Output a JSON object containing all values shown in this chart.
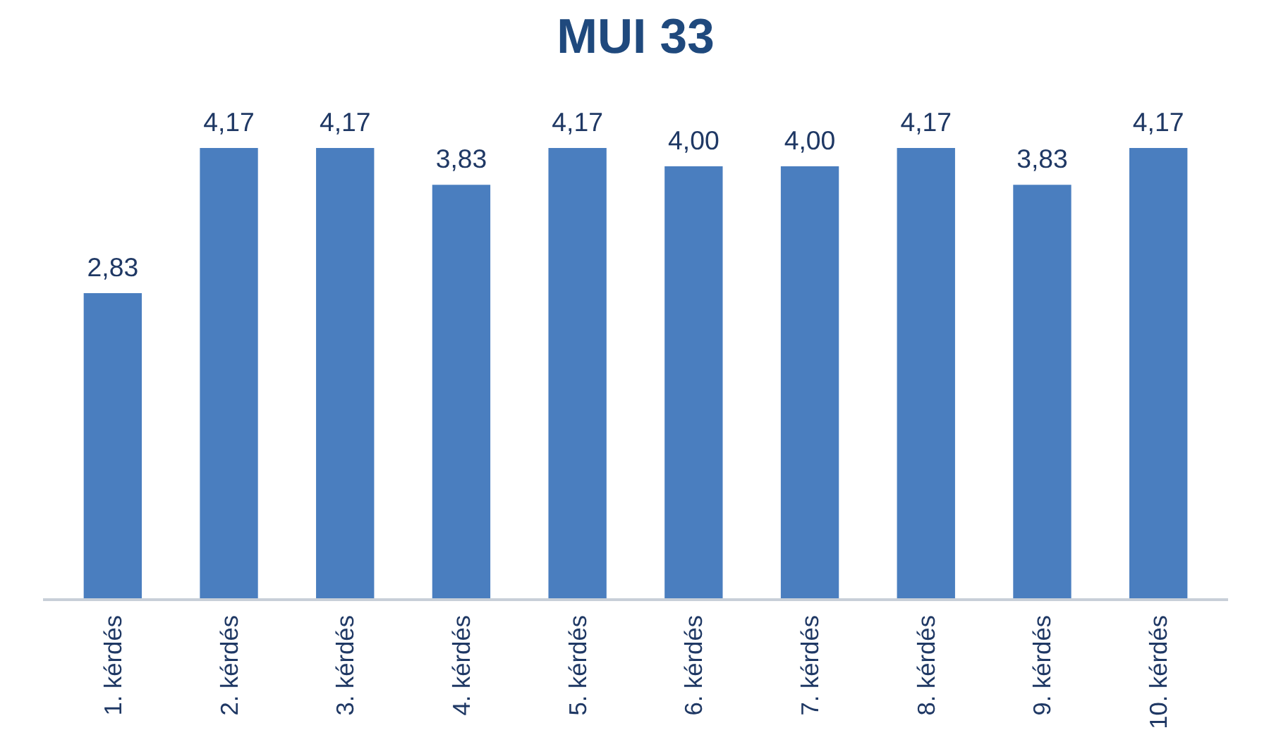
{
  "chart_data": {
    "type": "bar",
    "title": "MUI 33",
    "categories": [
      "1. kérdés",
      "2. kérdés",
      "3. kérdés",
      "4. kérdés",
      "5. kérdés",
      "6. kérdés",
      "7. kérdés",
      "8. kérdés",
      "9. kérdés",
      "10. kérdés"
    ],
    "values": [
      2.83,
      4.17,
      4.17,
      3.83,
      4.17,
      4.0,
      4.0,
      4.17,
      3.83,
      4.17
    ],
    "value_labels": [
      "2,83",
      "4,17",
      "4,17",
      "3,83",
      "4,17",
      "4,00",
      "4,00",
      "4,17",
      "3,83",
      "4,17"
    ],
    "color": "#4a7ebf",
    "grid": false
  }
}
